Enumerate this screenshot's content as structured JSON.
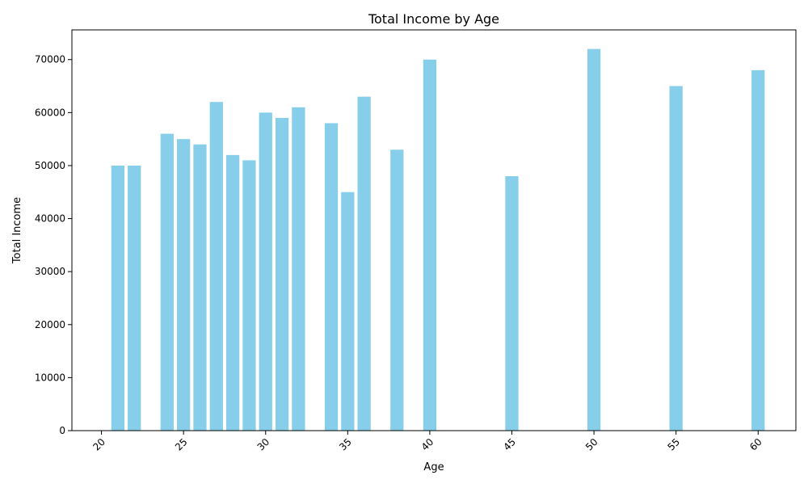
{
  "chart_data": {
    "type": "bar",
    "title": "Total Income by Age",
    "xlabel": "Age",
    "ylabel": "Total Income",
    "x": [
      21,
      22,
      24,
      25,
      26,
      27,
      28,
      29,
      30,
      31,
      32,
      34,
      35,
      36,
      38,
      40,
      45,
      50,
      55,
      60
    ],
    "values": [
      50000,
      50000,
      56000,
      55000,
      54000,
      62000,
      52000,
      51000,
      60000,
      59000,
      61000,
      58000,
      45000,
      63000,
      53000,
      70000,
      48000,
      72000,
      65000,
      68000
    ],
    "xlim": [
      18.2,
      62.3
    ],
    "ylim": [
      0,
      75600
    ],
    "xticks": [
      20,
      25,
      30,
      35,
      40,
      45,
      50,
      55,
      60
    ],
    "yticks": [
      0,
      10000,
      20000,
      30000,
      40000,
      50000,
      60000,
      70000
    ],
    "bar_color": "#87ceeb",
    "grid": false,
    "legend": "none"
  }
}
